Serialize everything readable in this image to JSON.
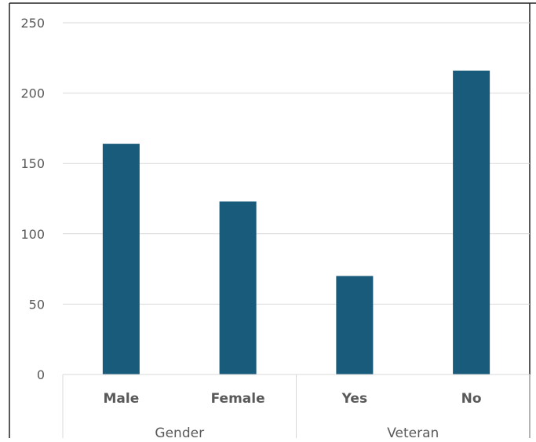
{
  "chart_data": {
    "type": "bar",
    "title": "",
    "xlabel": "",
    "ylabel": "",
    "ylim": [
      0,
      250
    ],
    "yticks": [
      0,
      50,
      100,
      150,
      200,
      250
    ],
    "grid": true,
    "categories": [
      "Male",
      "Female",
      "Yes",
      "No"
    ],
    "groups": [
      {
        "label": "Gender",
        "categories": [
          "Male",
          "Female"
        ]
      },
      {
        "label": "Veteran",
        "categories": [
          "Yes",
          "No"
        ]
      }
    ],
    "series": [
      {
        "values": [
          164,
          123,
          70,
          216
        ],
        "color": "#195b7b"
      }
    ]
  }
}
